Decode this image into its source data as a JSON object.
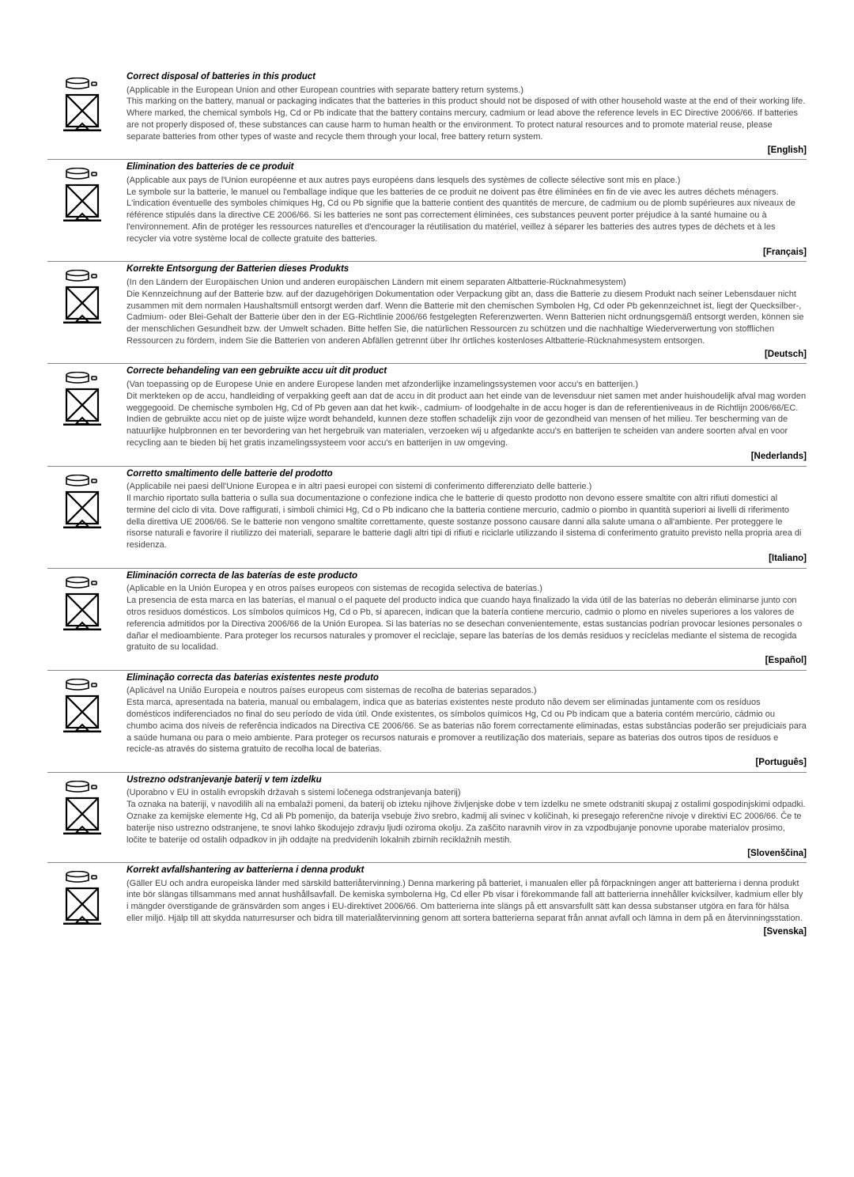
{
  "sections": [
    {
      "title": "Correct disposal of batteries in this product",
      "subtitle": "(Applicable in the European Union and other European countries with separate battery return systems.)",
      "body": "This marking on the battery, manual or packaging indicates that the batteries in this product should not be disposed of with other household waste at the end of their working life. Where marked, the chemical symbols Hg, Cd or Pb indicate that the battery contains mercury, cadmium or lead above the reference levels in EC Directive 2006/66. If batteries are not properly disposed of, these substances can cause harm to human health or the environment. To protect natural resources and to promote material reuse, please separate batteries from other types of waste and recycle them through your local, free battery return system.",
      "lang": "[English]"
    },
    {
      "title": "Elimination des batteries de ce produit",
      "subtitle": "(Applicable aux pays de l'Union européenne et aux autres pays européens dans lesquels des systèmes de collecte sélective sont mis en place.)",
      "body": "Le symbole sur la batterie, le manuel ou l'emballage indique que les batteries de ce produit ne doivent pas être éliminées en fin de vie avec les autres déchets ménagers. L'indication éventuelle des symboles chimiques Hg, Cd ou Pb signifie que la batterie contient des quantités de mercure, de cadmium ou de plomb supérieures aux niveaux de référence stipulés dans la directive CE 2006/66. Si les batteries ne sont pas correctement éliminées, ces substances peuvent porter préjudice à la santé humaine ou à l'environnement. Afin de protéger les ressources naturelles et d'encourager la réutilisation du matériel, veillez à séparer les batteries des autres types de déchets et à les recycler via votre système local de collecte gratuite des batteries.",
      "lang": "[Français]"
    },
    {
      "title": "Korrekte Entsorgung der Batterien dieses Produkts",
      "subtitle": "(In den Ländern der Europäischen Union und anderen europäischen Ländern mit einem separaten Altbatterie-Rücknahmesystem)",
      "body": "Die Kennzeichnung auf der Batterie bzw. auf der dazugehörigen Dokumentation oder Verpackung gibt an, dass die Batterie zu diesem Produkt nach seiner Lebensdauer nicht zusammen mit dem normalen Haushaltsmüll entsorgt werden darf. Wenn die Batterie mit den chemischen Symbolen Hg, Cd oder Pb gekennzeichnet ist, liegt der Quecksilber-, Cadmium- oder Blei-Gehalt der Batterie über den in der EG-Richtlinie 2006/66 festgelegten Referenzwerten. Wenn Batterien nicht ordnungsgemäß entsorgt werden, können sie der menschlichen Gesundheit bzw. der Umwelt schaden. Bitte helfen Sie, die natürlichen Ressourcen zu schützen und die nachhaltige Wiederverwertung von stofflichen Ressourcen zu fördern, indem Sie die Batterien von anderen Abfällen getrennt über Ihr örtliches kostenloses Altbatterie-Rücknahmesystem entsorgen.",
      "lang": "[Deutsch]"
    },
    {
      "title": "Correcte behandeling van een gebruikte accu uit dit product",
      "subtitle": "(Van toepassing op de Europese Unie en andere Europese landen met afzonderlijke inzamelingssystemen voor accu's en batterijen.)",
      "body": "Dit merkteken op de accu, handleiding of verpakking geeft aan dat de accu in dit product aan het einde van de levensduur niet samen met ander huishoudelijk afval mag worden weggegooid. De chemische symbolen Hg, Cd of Pb geven aan dat het kwik-, cadmium- of loodgehalte in de accu hoger is dan de referentieniveaus in de Richtlijn 2006/66/EC. Indien de gebruikte accu niet op de juiste wijze wordt behandeld, kunnen deze stoffen schadelijk zijn voor de gezondheid van mensen of het milieu. Ter bescherming van de natuurlijke hulpbronnen en ter bevordering van het hergebruik van materialen, verzoeken wij u afgedankte accu's en batterijen te scheiden van andere soorten afval en voor recycling aan te bieden bij het gratis inzamelingssysteem voor accu's en batterijen in uw omgeving.",
      "lang": "[Nederlands]"
    },
    {
      "title": "Corretto smaltimento delle batterie del prodotto",
      "subtitle": "(Applicabile nei paesi dell'Unione Europea e in altri paesi europei con sistemi di conferimento differenziato delle batterie.)",
      "body": "Il marchio riportato sulla batteria o sulla sua documentazione o confezione indica che le batterie di questo prodotto non devono essere smaltite con altri rifiuti domestici al termine del ciclo di vita. Dove raffigurati, i simboli chimici Hg, Cd o Pb indicano che la batteria contiene mercurio, cadmio o piombo in quantità superiori ai livelli di riferimento della direttiva UE 2006/66. Se le batterie non vengono smaltite correttamente, queste sostanze possono causare danni alla salute umana o all'ambiente. Per proteggere le risorse naturali e favorire il riutilizzo dei materiali, separare le batterie dagli altri tipi di rifiuti e riciclarle utilizzando il sistema di conferimento gratuito previsto nella propria area di residenza.",
      "lang": "[Italiano]"
    },
    {
      "title": "Eliminación correcta de las baterías de este producto",
      "subtitle": "(Aplicable en la Unión Europea y en otros países europeos con sistemas de recogida selectiva de baterías.)",
      "body": "La presencia de esta marca en las baterías, el manual o el paquete del producto indica que cuando haya finalizado la vida útil de las baterías no deberán eliminarse junto con otros residuos domésticos. Los símbolos químicos Hg, Cd o Pb, si aparecen, indican que la batería contiene mercurio, cadmio o plomo en niveles superiores a los valores de referencia admitidos por la Directiva 2006/66 de la Unión Europea. Si las baterías no se desechan convenientemente, estas sustancias podrían provocar lesiones personales o dañar el medioambiente. Para proteger los recursos naturales y promover el reciclaje, separe las baterías de los demás residuos y recíclelas mediante el sistema de recogida gratuito de su localidad.",
      "lang": "[Español]"
    },
    {
      "title": "Eliminação correcta das baterias existentes neste produto",
      "subtitle": "(Aplicável na União Europeia e noutros países europeus com sistemas de recolha de baterias separados.)",
      "body": "Esta marca, apresentada na bateria, manual ou embalagem, indica que as baterias existentes neste produto não devem ser eliminadas juntamente com os resíduos domésticos indiferenciados no final do seu período de vida útil. Onde existentes, os símbolos químicos Hg, Cd ou Pb indicam que a bateria contém mercúrio, cádmio ou chumbo acima dos níveis de referência indicados na Directiva CE 2006/66. Se as baterias não forem correctamente eliminadas, estas substâncias poderão ser prejudiciais para a saúde humana ou para o meio ambiente. Para proteger os recursos naturais e promover a reutilização dos materiais, separe as baterias dos outros tipos de resíduos e recicle-as através do sistema gratuito de recolha local de baterias.",
      "lang": "[Português]"
    },
    {
      "title": "Ustrezno odstranjevanje baterij v tem izdelku",
      "subtitle": "(Uporabno v EU in ostalih evropskih državah s sistemi ločenega odstranjevanja baterij)",
      "body": "Ta oznaka na bateriji, v navodilih ali na embalaži pomeni, da baterij ob izteku njihove življenjske dobe v tem izdelku ne smete odstraniti skupaj z ostalimi gospodinjskimi odpadki. Oznake za kemijske elemente Hg, Cd ali Pb pomenijo, da baterija vsebuje živo srebro, kadmij ali svinec v količinah, ki presegajo referenčne nivoje v direktivi EC 2006/66. Če te baterije niso ustrezno odstranjene, te snovi lahko škodujejo zdravju ljudi oziroma okolju. Za zaščito naravnih virov in za vzpodbujanje ponovne uporabe materialov prosimo, ločite te baterije od ostalih odpadkov in jih oddajte na predvidenih lokalnih zbirnih reciklažnih mestih.",
      "lang": "[Slovenščina]"
    },
    {
      "title": "Korrekt avfallshantering av batterierna i denna produkt",
      "subtitle": "",
      "body": "(Gäller EU och andra europeiska länder med särskild batteriåtervinning.) Denna markering på batteriet, i manualen eller på förpackningen anger att batterierna i denna produkt inte bör slängas tillsammans med annat hushållsavfall. De kemiska symbolerna Hg, Cd eller Pb visar i förekommande fall att batterierna innehåller kvicksilver, kadmium eller bly i mängder överstigande de gränsvärden som anges i EU-direktivet 2006/66. Om batterierna inte slängs på ett ansvarsfullt sätt kan dessa substanser utgöra en fara för hälsa eller miljö. Hjälp till att skydda naturresurser och bidra till materialåtervinning genom att sortera batterierna separat från annat avfall och lämna in dem på en återvinningsstation.",
      "lang": "[Svenska]"
    }
  ]
}
